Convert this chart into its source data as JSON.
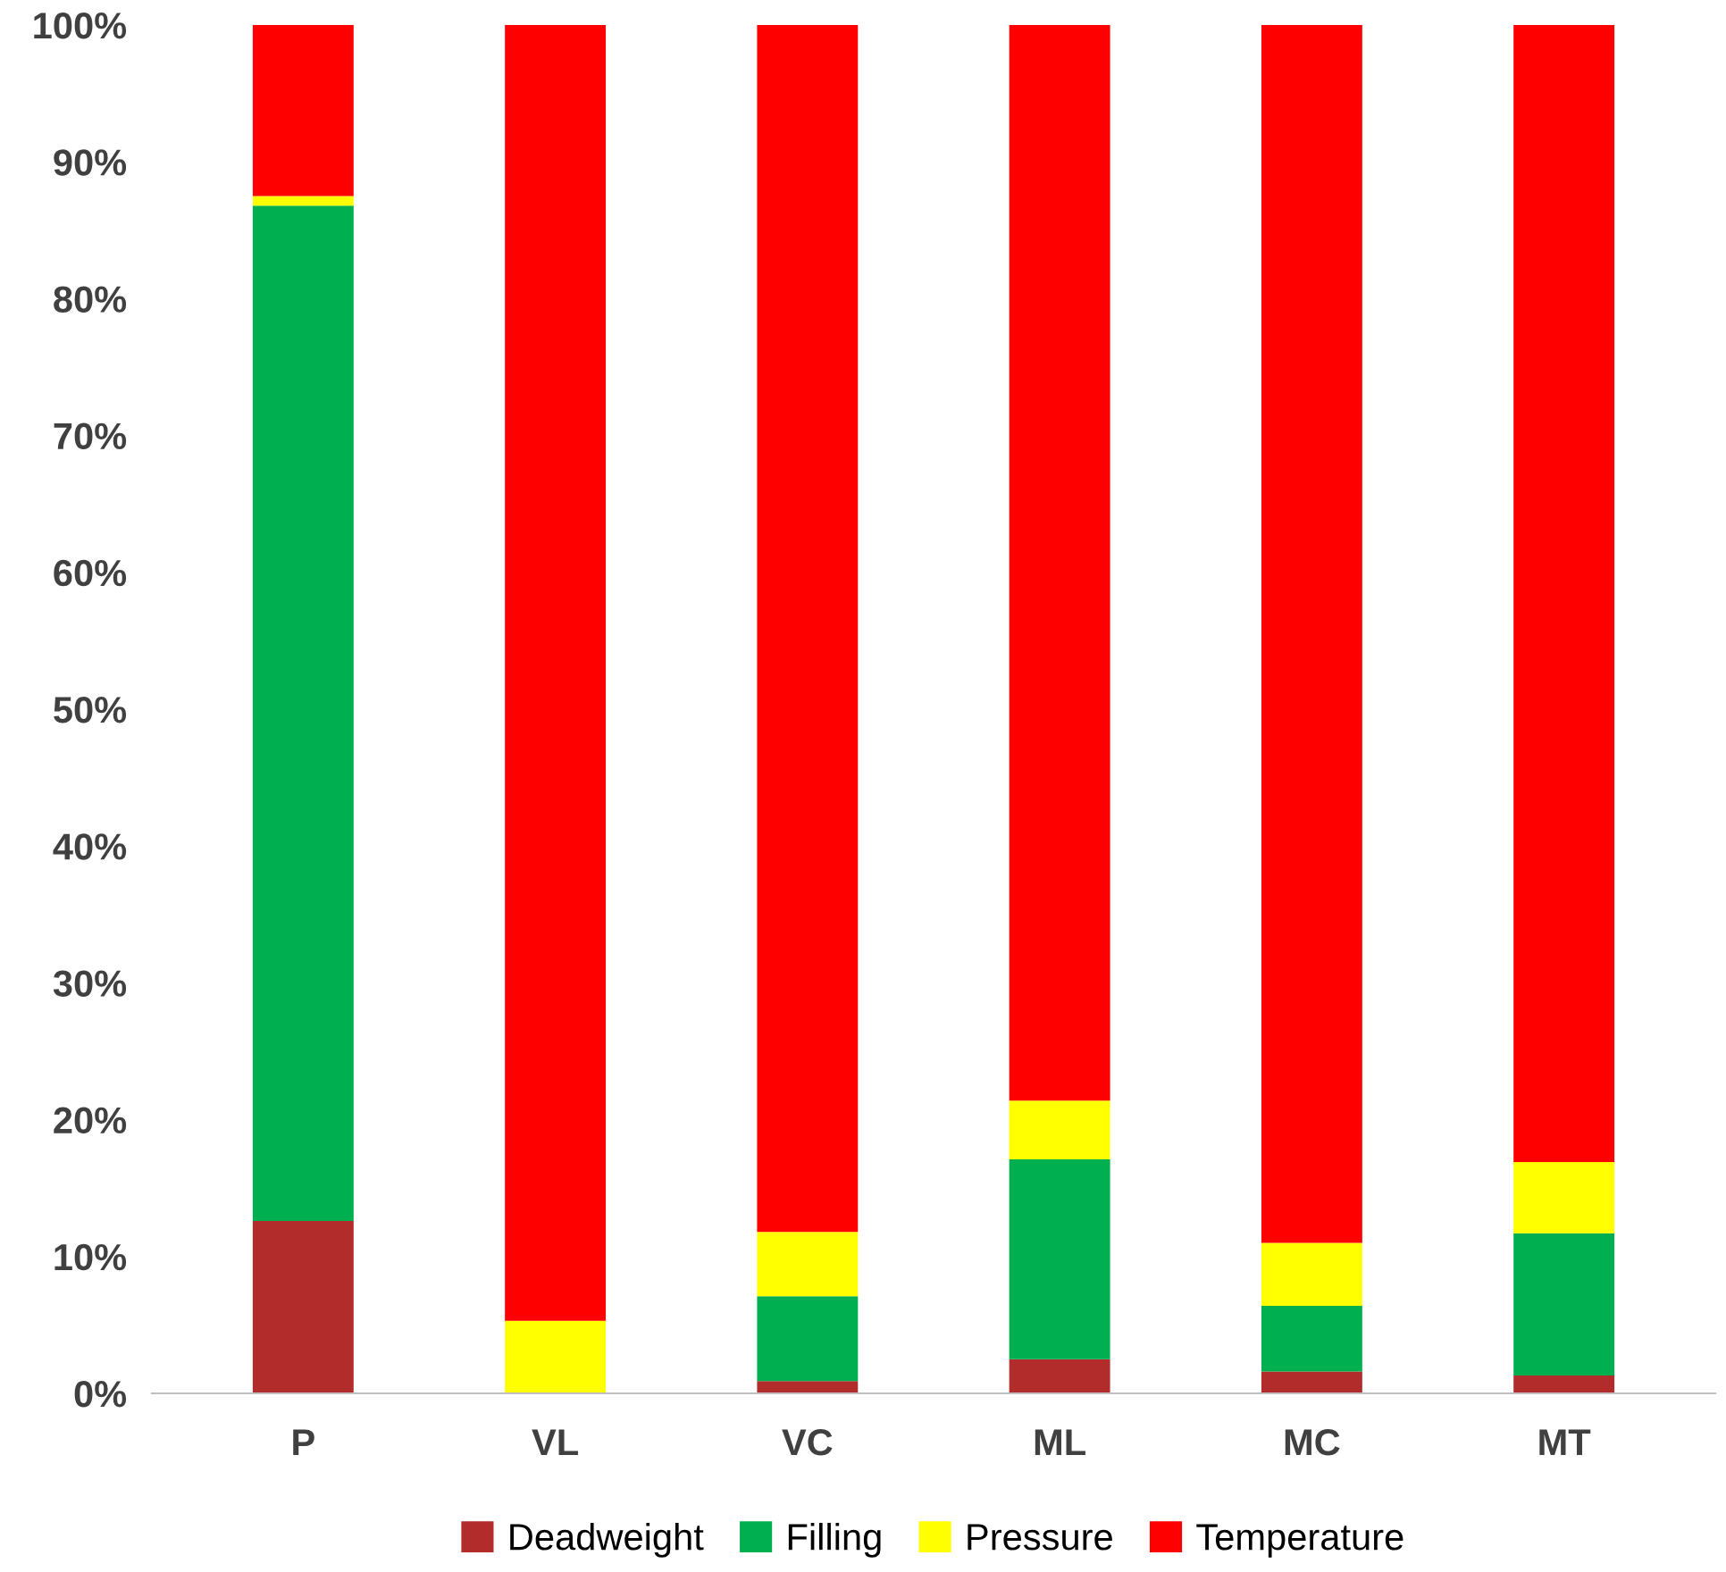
{
  "chart_data": {
    "type": "bar",
    "stacked": true,
    "categories": [
      "P",
      "VL",
      "VC",
      "ML",
      "MC",
      "MT"
    ],
    "series": [
      {
        "name": "Deadweight",
        "color": "#b22c2c",
        "values": [
          12.6,
          0,
          0.9,
          2.5,
          1.6,
          1.3
        ]
      },
      {
        "name": "Filling",
        "color": "#00b050",
        "values": [
          74.2,
          0,
          6.2,
          14.6,
          4.8,
          10.4
        ]
      },
      {
        "name": "Pressure",
        "color": "#ffff00",
        "values": [
          0.7,
          5.3,
          4.7,
          4.3,
          4.6,
          5.2
        ]
      },
      {
        "name": "Temperature",
        "color": "#ff0000",
        "values": [
          12.5,
          94.7,
          88.2,
          78.6,
          89.0,
          83.1
        ]
      }
    ],
    "ylim": [
      0,
      100
    ],
    "yticks": [
      {
        "value": 0,
        "label": "0%"
      },
      {
        "value": 10,
        "label": "10%"
      },
      {
        "value": 20,
        "label": "20%"
      },
      {
        "value": 30,
        "label": "30%"
      },
      {
        "value": 40,
        "label": "40%"
      },
      {
        "value": 50,
        "label": "50%"
      },
      {
        "value": 60,
        "label": "60%"
      },
      {
        "value": 70,
        "label": "70%"
      },
      {
        "value": 80,
        "label": "80%"
      },
      {
        "value": 90,
        "label": "90%"
      },
      {
        "value": 100,
        "label": "100%"
      }
    ],
    "grid": false,
    "legend": "bottom"
  }
}
